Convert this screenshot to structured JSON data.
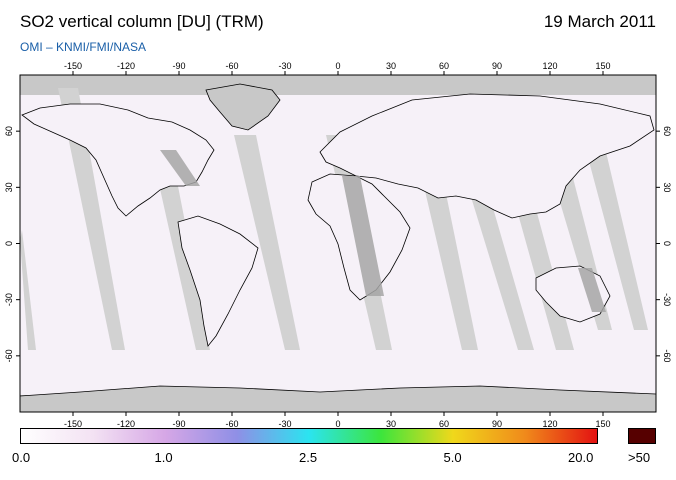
{
  "header": {
    "title": "SO2 vertical column [DU] (TRM)",
    "date": "19 March 2011",
    "source": "OMI  –  KNMI/FMI/NASA"
  },
  "map": {
    "projection": "equirectangular",
    "lon_ticks": [
      "-150",
      "-120",
      "-90",
      "-60",
      "-30",
      "0",
      "30",
      "60",
      "90",
      "120",
      "150"
    ],
    "lat_ticks": [
      "60",
      "30",
      "0",
      "-30",
      "-60"
    ],
    "colors": {
      "ocean": "#f6f1f8",
      "no_data": "#c8c8c8",
      "swath_gap": "#d2d2d2",
      "land_swath": "#a6a6a6",
      "coast": "#000000"
    }
  },
  "legend": {
    "labels": [
      "0.0",
      "1.0",
      "2.5",
      "5.0",
      "20.0"
    ],
    "overflow_label": ">50",
    "colors": [
      "#ffffff",
      "#f3e2f3",
      "#d6a7e6",
      "#8f8fe6",
      "#2be4f0",
      "#3ce53c",
      "#f0d81b",
      "#f08a1b",
      "#e31212"
    ],
    "overflow_color": "#560000"
  }
}
